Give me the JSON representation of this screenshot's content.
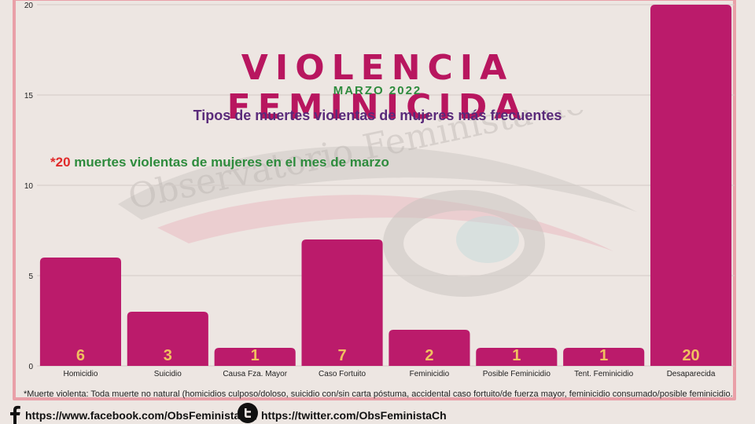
{
  "colors": {
    "bar": "#bb1b6b",
    "bar_label": "#f0c060",
    "title": "#b8165f",
    "green": "#2e8b3d",
    "purple": "#5a2a7a",
    "red": "#e02a2a",
    "frame": "#e9a0a8"
  },
  "header": {
    "title": "VIOLENCIA FEMINICIDA",
    "subtitle": "MARZO 2022",
    "heading": "Tipos de muertes violentas de mujeres más frecuentes",
    "note_count": "*20",
    "note_text": " muertes violentas de mujeres en el mes de marzo"
  },
  "watermark": {
    "text": "Observatorio Feminista de Chiapas"
  },
  "footnote": "*Muerte violenta: Toda muerte no natural (homicidios culposo/doloso, suicidio con/sin carta póstuma, accidental caso fortuito/de fuerza mayor, feminicidio consumado/posible feminicidio.",
  "social": {
    "facebook_icon": "facebook-icon",
    "facebook_url": "https://www.facebook.com/ObsFeministaCh/",
    "twitter_icon": "twitter-icon",
    "twitter_url": "https://twitter.com/ObsFeministaCh"
  },
  "chart_data": {
    "type": "bar",
    "categories": [
      "Homicidio",
      "Suicidio",
      "Causa Fza. Mayor",
      "Caso Fortuito",
      "Feminicidio",
      "Posible Feminicidio",
      "Tent. Feminicidio",
      "Desaparecida"
    ],
    "values": [
      6,
      3,
      1,
      7,
      2,
      1,
      1,
      20
    ],
    "ylim": [
      0,
      20
    ],
    "yticks": [
      0,
      5,
      10,
      15,
      20
    ],
    "grid": true,
    "data_labels": true
  }
}
